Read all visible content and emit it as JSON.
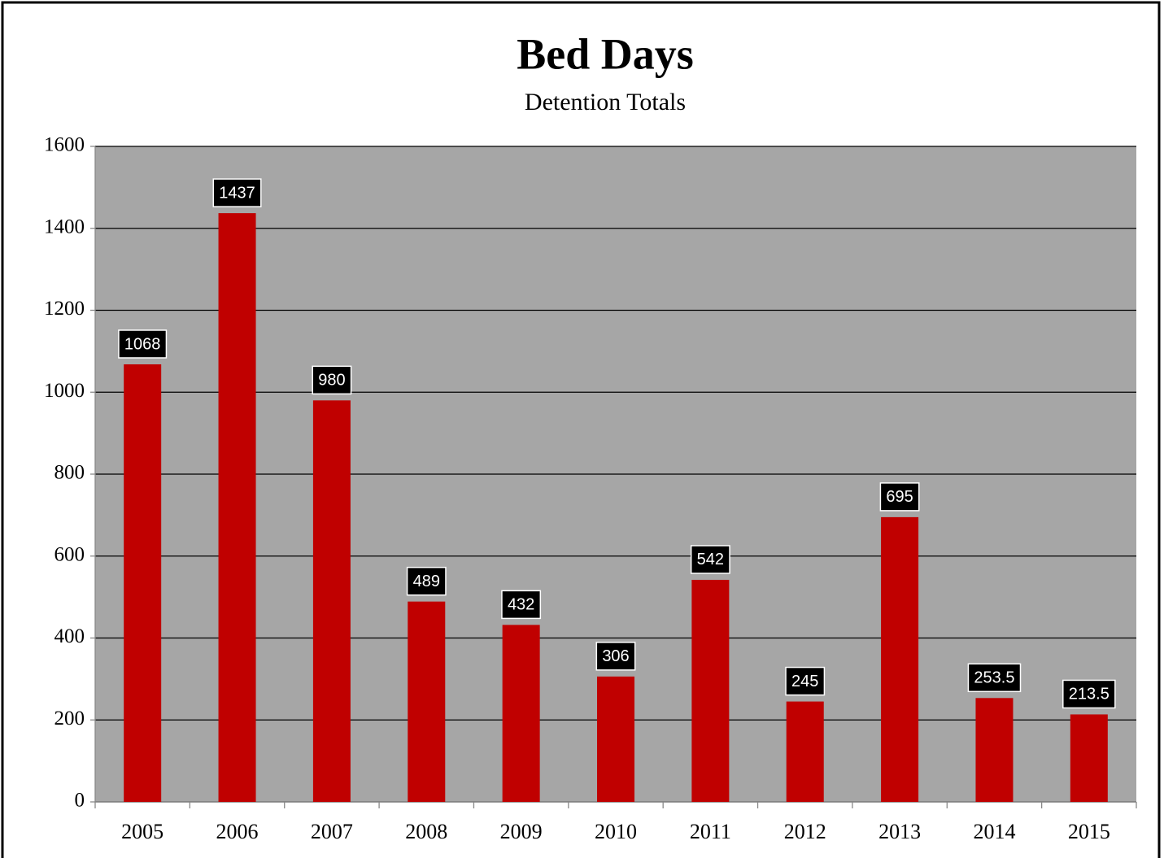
{
  "chart_data": {
    "type": "bar",
    "title": "Bed Days",
    "subtitle": "Detention Totals",
    "categories": [
      "2005",
      "2006",
      "2007",
      "2008",
      "2009",
      "2010",
      "2011",
      "2012",
      "2013",
      "2014",
      "2015"
    ],
    "values": [
      1068,
      1437,
      980,
      489,
      432,
      306,
      542,
      245,
      695,
      253.5,
      213.5
    ],
    "color": "#c00000",
    "ylim": [
      0,
      1600
    ],
    "yticks": [
      0,
      200,
      400,
      600,
      800,
      1000,
      1200,
      1400,
      1600
    ],
    "grid": true
  }
}
